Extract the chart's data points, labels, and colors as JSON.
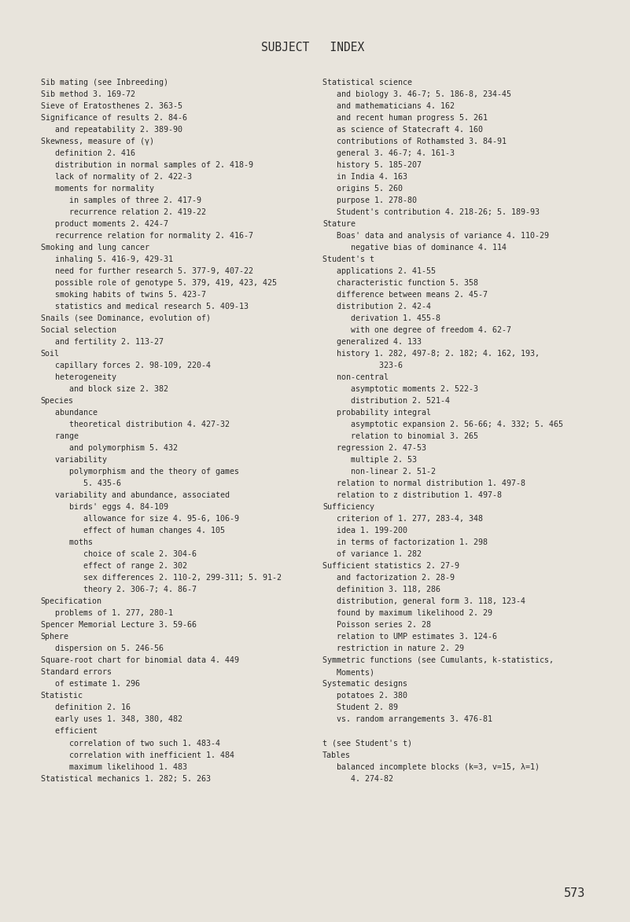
{
  "title": "SUBJECT   INDEX",
  "page_number": "573",
  "background_color": "#e8e4dc",
  "text_color": "#2a2a2a",
  "title_color": "#2a2a2a",
  "left_column": [
    "Sib mating (see Inbreeding)",
    "Sib method 3. 169-72",
    "Sieve of Eratosthenes 2. 363-5",
    "Significance of results 2. 84-6",
    "   and repeatability 2. 389-90",
    "Skewness, measure of (γ)",
    "   definition 2. 416",
    "   distribution in normal samples of 2. 418-9",
    "   lack of normality of 2. 422-3",
    "   moments for normality",
    "      in samples of three 2. 417-9",
    "      recurrence relation 2. 419-22",
    "   product moments 2. 424-7",
    "   recurrence relation for normality 2. 416-7",
    "Smoking and lung cancer",
    "   inhaling 5. 416-9, 429-31",
    "   need for further research 5. 377-9, 407-22",
    "   possible role of genotype 5. 379, 419, 423, 425",
    "   smoking habits of twins 5. 423-7",
    "   statistics and medical research 5. 409-13",
    "Snails (see Dominance, evolution of)",
    "Social selection",
    "   and fertility 2. 113-27",
    "Soil",
    "   capillary forces 2. 98-109, 220-4",
    "   heterogeneity",
    "      and block size 2. 382",
    "Species",
    "   abundance",
    "      theoretical distribution 4. 427-32",
    "   range",
    "      and polymorphism 5. 432",
    "   variability",
    "      polymorphism and the theory of games",
    "         5. 435-6",
    "   variability and abundance, associated",
    "      birds' eggs 4. 84-109",
    "         allowance for size 4. 95-6, 106-9",
    "         effect of human changes 4. 105",
    "      moths",
    "         choice of scale 2. 304-6",
    "         effect of range 2. 302",
    "         sex differences 2. 110-2, 299-311; 5. 91-2",
    "         theory 2. 306-7; 4. 86-7",
    "Specification",
    "   problems of 1. 277, 280-1",
    "Spencer Memorial Lecture 3. 59-66",
    "Sphere",
    "   dispersion on 5. 246-56",
    "Square-root chart for binomial data 4. 449",
    "Standard errors",
    "   of estimate 1. 296",
    "Statistic",
    "   definition 2. 16",
    "   early uses 1. 348, 380, 482",
    "   efficient",
    "      correlation of two such 1. 483-4",
    "      correlation with inefficient 1. 484",
    "      maximum likelihood 1. 483",
    "Statistical mechanics 1. 282; 5. 263"
  ],
  "right_column": [
    "Statistical science",
    "   and biology 3. 46-7; 5. 186-8, 234-45",
    "   and mathematicians 4. 162",
    "   and recent human progress 5. 261",
    "   as science of Statecraft 4. 160",
    "   contributions of Rothamsted 3. 84-91",
    "   general 3. 46-7; 4. 161-3",
    "   history 5. 185-207",
    "   in India 4. 163",
    "   origins 5. 260",
    "   purpose 1. 278-80",
    "   Student's contribution 4. 218-26; 5. 189-93",
    "Stature",
    "   Boas' data and analysis of variance 4. 110-29",
    "      negative bias of dominance 4. 114",
    "Student's t",
    "   applications 2. 41-55",
    "   characteristic function 5. 358",
    "   difference between means 2. 45-7",
    "   distribution 2. 42-4",
    "      derivation 1. 455-8",
    "      with one degree of freedom 4. 62-7",
    "   generalized 4. 133",
    "   history 1. 282, 497-8; 2. 182; 4. 162, 193,",
    "            323-6",
    "   non-central",
    "      asymptotic moments 2. 522-3",
    "      distribution 2. 521-4",
    "   probability integral",
    "      asymptotic expansion 2. 56-66; 4. 332; 5. 465",
    "      relation to binomial 3. 265",
    "   regression 2. 47-53",
    "      multiple 2. 53",
    "      non-linear 2. 51-2",
    "   relation to normal distribution 1. 497-8",
    "   relation to z distribution 1. 497-8",
    "Sufficiency",
    "   criterion of 1. 277, 283-4, 348",
    "   idea 1. 199-200",
    "   in terms of factorization 1. 298",
    "   of variance 1. 282",
    "Sufficient statistics 2. 27-9",
    "   and factorization 2. 28-9",
    "   definition 3. 118, 286",
    "   distribution, general form 3. 118, 123-4",
    "   found by maximum likelihood 2. 29",
    "   Poisson series 2. 28",
    "   relation to UMP estimates 3. 124-6",
    "   restriction in nature 2. 29",
    "Symmetric functions (see Cumulants, k-statistics,",
    "   Moments)",
    "Systematic designs",
    "   potatoes 2. 380",
    "   Student 2. 89",
    "   vs. random arrangements 3. 476-81",
    "",
    "t (see Student's t)",
    "Tables",
    "   balanced incomplete blocks (k=3, v=15, λ=1)",
    "      4. 274-82"
  ]
}
